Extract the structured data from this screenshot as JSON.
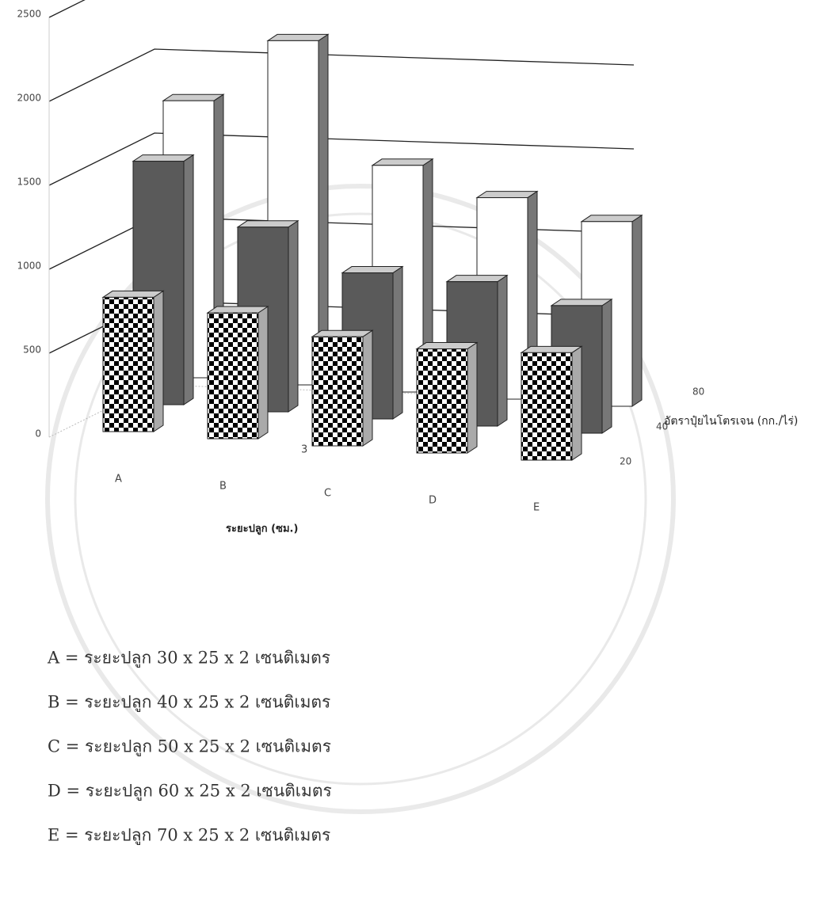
{
  "chart_data": {
    "type": "bar3d",
    "categories": [
      "A",
      "B",
      "C",
      "D",
      "E"
    ],
    "x_label": "ระยะปลูก (ซม.)",
    "depth_label": "อัตราปุ๋ยไนโตรเจน (กก./ไร่)",
    "annotation": "3",
    "series": [
      {
        "name": "20",
        "color": "#000000",
        "pattern": "checker",
        "values": [
          800,
          750,
          650,
          620,
          640
        ]
      },
      {
        "name": "40",
        "color": "#5a5a5a",
        "values": [
          1450,
          1100,
          870,
          860,
          760
        ]
      },
      {
        "name": "80",
        "color": "#ffffff",
        "values": [
          1650,
          2050,
          1350,
          1200,
          1100
        ]
      }
    ],
    "ylim": [
      0,
      2500
    ],
    "yticks": [
      0,
      500,
      1000,
      1500,
      2000,
      2500
    ],
    "grid": true,
    "notes": [
      "A  =  ระยะปลูก  30 x 25 x 2  เซนติเมตร",
      "B  =  ระยะปลูก  40 x 25 x 2  เซนติเมตร",
      "C  =  ระยะปลูก  50 x 25 x 2  เซนติเมตร",
      "D  =  ระยะปลูก  60 x 25 x 2  เซนติเมตร",
      "E  =  ระยะปลูก  70 x 25 x 2  เซนติเมตร"
    ]
  }
}
